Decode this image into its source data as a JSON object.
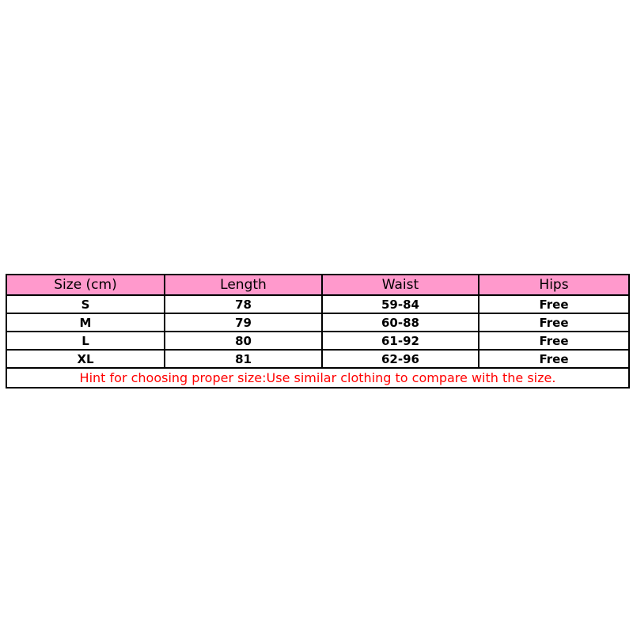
{
  "table": {
    "header_color": "#ff99cc",
    "headers": [
      "Size (cm)",
      "Length",
      "Waist",
      "Hips"
    ],
    "rows": [
      [
        "S",
        "78",
        "59-84",
        "Free"
      ],
      [
        "M",
        "79",
        "60-88",
        "Free"
      ],
      [
        "L",
        "80",
        "61-92",
        "Free"
      ],
      [
        "XL",
        "81",
        "62-96",
        "Free"
      ]
    ],
    "hint": "Hint for choosing proper size:Use similar clothing to compare with the size.",
    "hint_color": "#ff0000"
  }
}
